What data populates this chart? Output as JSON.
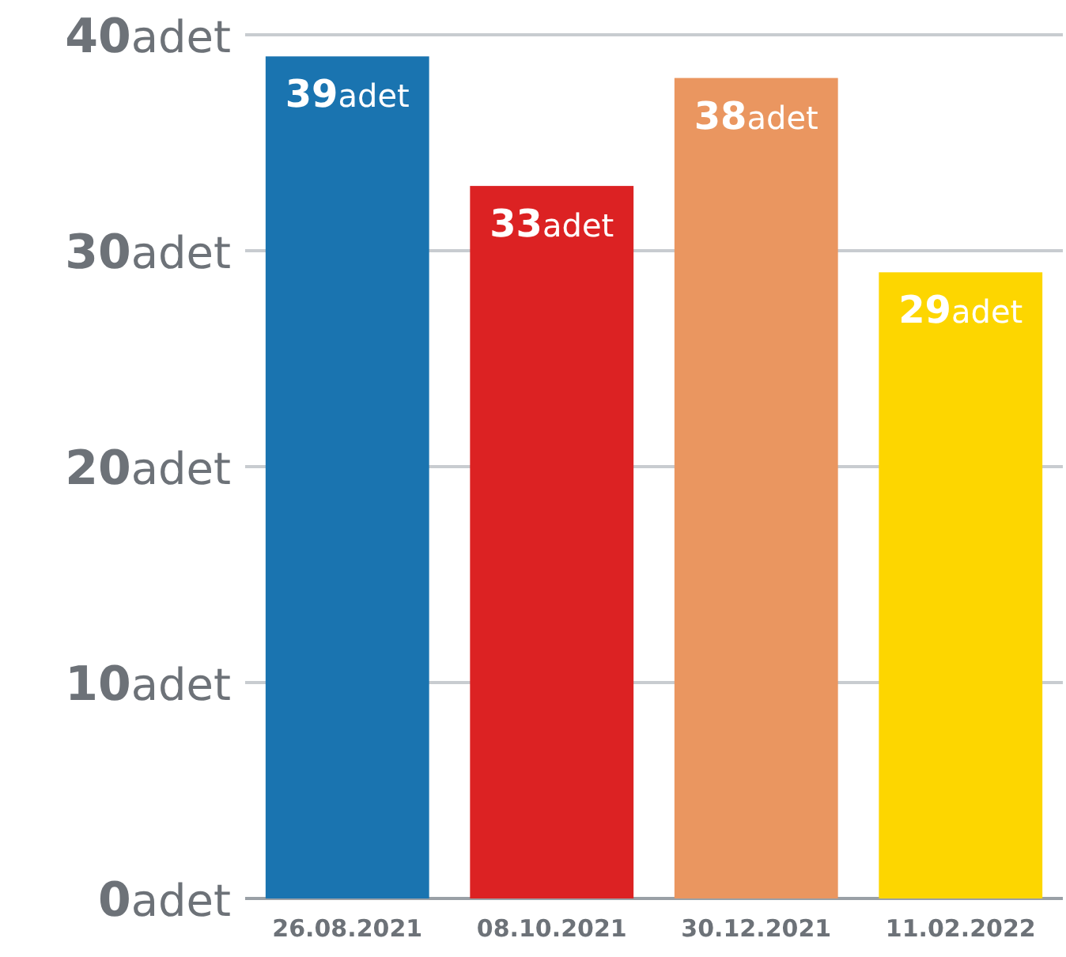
{
  "chart_data": {
    "type": "bar",
    "categories": [
      "26.08.2021",
      "08.10.2021",
      "30.12.2021",
      "11.02.2022"
    ],
    "values": [
      39,
      33,
      38,
      29
    ],
    "colors": [
      "#1a74b0",
      "#dc2223",
      "#ea9660",
      "#fdd600"
    ],
    "value_labels": [
      "39adet",
      "33adet",
      "38adet",
      "29adet"
    ],
    "ylim": [
      0,
      40
    ],
    "yticks": [
      {
        "value": 0,
        "label": "0adet"
      },
      {
        "value": 10,
        "label": "10adet"
      },
      {
        "value": 20,
        "label": "20adet"
      },
      {
        "value": 30,
        "label": "30adet"
      },
      {
        "value": 40,
        "label": "40adet"
      }
    ],
    "grid": "y"
  }
}
